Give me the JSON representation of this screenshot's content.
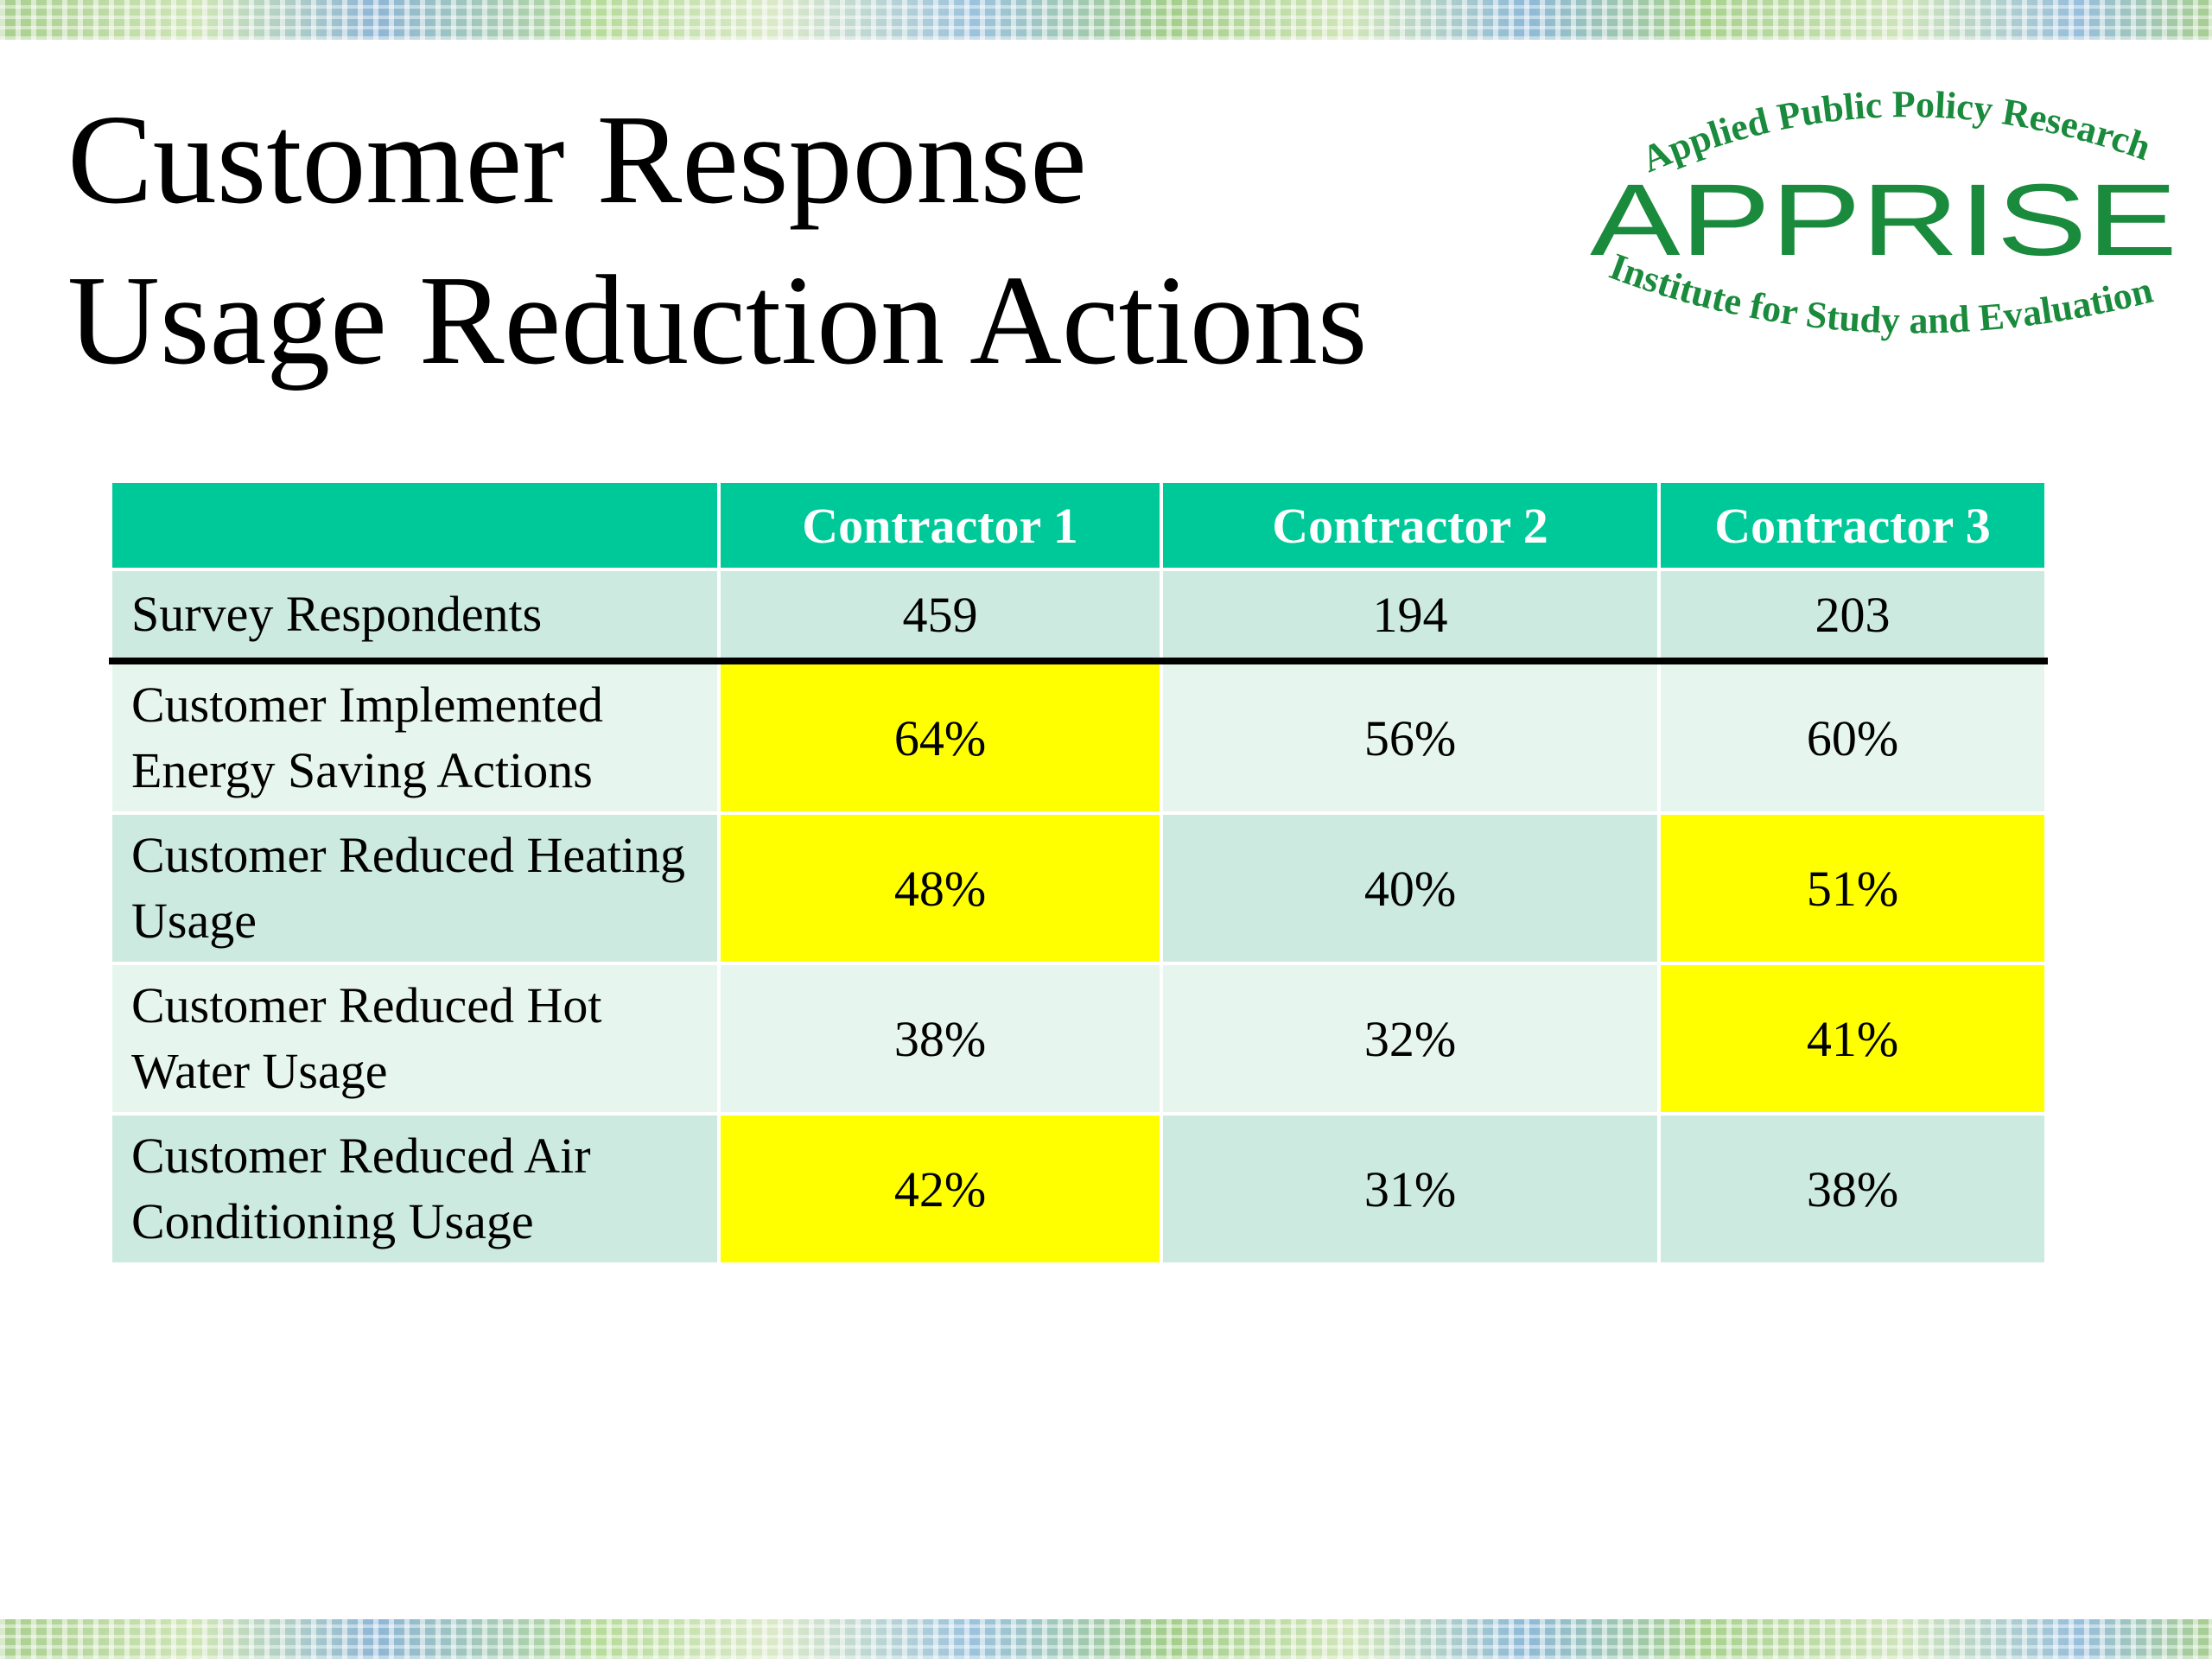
{
  "title": {
    "line1": "Customer Response",
    "line2": "Usage Reduction Actions"
  },
  "logo": {
    "top_arc_text": "Applied Public Policy Research",
    "wordmark": "APPRISE",
    "bottom_arc_text": "Institute for Study and Evaluation",
    "color": "#1a8a3c"
  },
  "table": {
    "header_color": "#00c999",
    "highlight_color": "#ffff00",
    "columns": [
      "",
      "Contractor 1",
      "Contractor 2",
      "Contractor 3"
    ],
    "respondents": {
      "label": "Survey Respondents",
      "values": [
        "459",
        "194",
        "203"
      ]
    },
    "rows": [
      {
        "label": "Customer Implemented Energy Saving Actions",
        "values": [
          "64%",
          "56%",
          "60%"
        ],
        "highlighted": [
          true,
          false,
          false
        ]
      },
      {
        "label": "Customer Reduced Heating Usage",
        "values": [
          "48%",
          "40%",
          "51%"
        ],
        "highlighted": [
          true,
          false,
          true
        ]
      },
      {
        "label": "Customer Reduced Hot Water Usage",
        "values": [
          "38%",
          "32%",
          "41%"
        ],
        "highlighted": [
          false,
          false,
          true
        ]
      },
      {
        "label": "Customer Reduced Air Conditioning Usage",
        "values": [
          "42%",
          "31%",
          "38%"
        ],
        "highlighted": [
          true,
          false,
          false
        ]
      }
    ]
  }
}
